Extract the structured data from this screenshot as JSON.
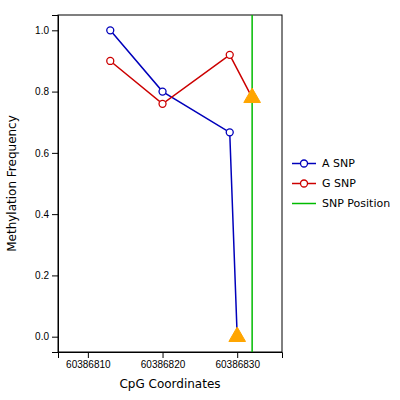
{
  "chart_data": {
    "type": "line",
    "xlabel": "CpG Coordinates",
    "ylabel": "Methylation Frequency",
    "xlim": [
      60386806,
      60386836
    ],
    "ylim": [
      -0.05,
      1.05
    ],
    "xticks": [
      60386810,
      60386820,
      60386830
    ],
    "yticks": [
      {
        "value": 0.0,
        "label": "0.0"
      },
      0.2,
      0.4,
      0.6,
      0.8,
      {
        "value": 1.0,
        "label": "1.0"
      }
    ],
    "legend": "right",
    "series": [
      {
        "name": "A SNP",
        "type": "line",
        "marker": "circle",
        "color": "#0000bb",
        "x": [
          60386813,
          60386820,
          60386829,
          60386830
        ],
        "values": [
          1.0,
          0.8,
          0.667,
          0.0
        ]
      },
      {
        "name": "G SNP",
        "type": "line",
        "marker": "circle",
        "color": "#cc0000",
        "x": [
          60386813,
          60386820,
          60386829,
          60386832
        ],
        "values": [
          0.9,
          0.76,
          0.92,
          0.78
        ]
      },
      {
        "name": "SNP Position",
        "type": "vline",
        "color": "#00bb00",
        "x": [
          60386832
        ]
      },
      {
        "type": "scatter",
        "marker": "triangle",
        "color": "#FFA500",
        "x": [
          60386830,
          60386832
        ],
        "values": [
          0.0,
          0.78
        ]
      }
    ]
  }
}
